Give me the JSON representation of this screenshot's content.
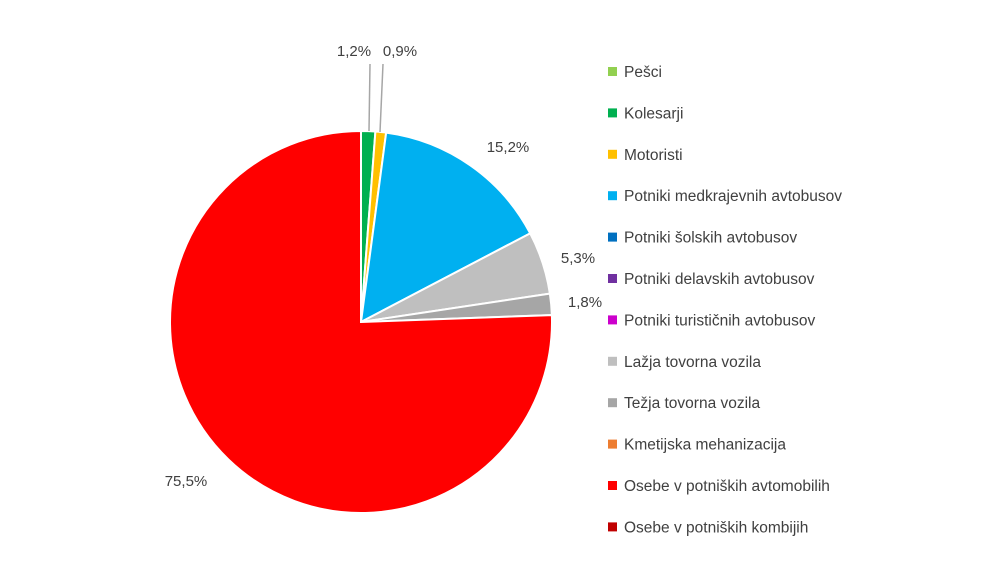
{
  "chart_data": {
    "type": "pie",
    "title": "",
    "legend_position": "right",
    "slices": [
      {
        "name": "Pešci",
        "value": 0,
        "label": "",
        "color": "#92D050"
      },
      {
        "name": "Kolesarji",
        "value": 1.2,
        "label": "1,2%",
        "color": "#00B050"
      },
      {
        "name": "Motoristi",
        "value": 0.9,
        "label": "0,9%",
        "color": "#FFC000"
      },
      {
        "name": "Potniki medkrajevnih avtobusov",
        "value": 15.2,
        "label": "15,2%",
        "color": "#00B0F0"
      },
      {
        "name": "Potniki šolskih avtobusov",
        "value": 0,
        "label": "",
        "color": "#0070C0"
      },
      {
        "name": "Potniki delavskih avtobusov",
        "value": 0,
        "label": "",
        "color": "#7030A0"
      },
      {
        "name": "Potniki turističnih avtobusov",
        "value": 0,
        "label": "",
        "color": "#CC00CC"
      },
      {
        "name": "Lažja tovorna vozila",
        "value": 5.3,
        "label": "5,3%",
        "color": "#BFBFBF"
      },
      {
        "name": "Težja tovorna vozila",
        "value": 1.8,
        "label": "1,8%",
        "color": "#A6A6A6"
      },
      {
        "name": "Kmetijska mehanizacija",
        "value": 0,
        "label": "",
        "color": "#ED7D31"
      },
      {
        "name": "Osebe v potniških avtomobilih",
        "value": 75.5,
        "label": "75,5%",
        "color": "#FF0000"
      },
      {
        "name": "Osebe v potniških kombijih",
        "value": 0,
        "label": "",
        "color": "#C00000"
      }
    ]
  }
}
